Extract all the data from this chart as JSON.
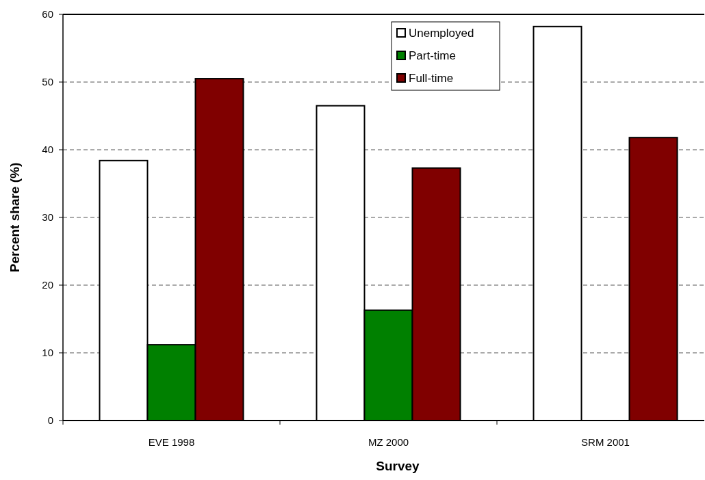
{
  "chart_data": {
    "type": "bar",
    "xlabel": "Survey",
    "ylabel": "Percent share (%)",
    "categories": [
      "EVE 1998",
      "MZ 2000",
      "SRM 2001"
    ],
    "series": [
      {
        "name": "Unemployed",
        "color": "#ffffff",
        "values": [
          38.4,
          46.5,
          58.2
        ]
      },
      {
        "name": "Part-time",
        "color": "#008000",
        "values": [
          11.2,
          16.3,
          null
        ]
      },
      {
        "name": "Full-time",
        "color": "#800000",
        "values": [
          50.5,
          37.3,
          41.8
        ]
      }
    ],
    "ylim": [
      0,
      60
    ],
    "yticks": [
      0,
      10,
      20,
      30,
      40,
      50,
      60
    ],
    "grid": "y",
    "legend": "top"
  }
}
